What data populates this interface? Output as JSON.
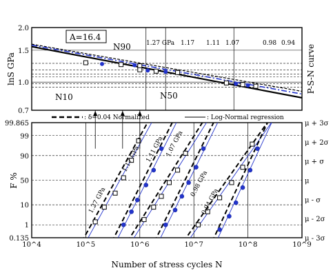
{
  "chart_data": [
    {
      "type": "line",
      "panel": "top",
      "title": "P-S-N curve",
      "ylabel": "lnS GPa",
      "y_scale": "log",
      "ylim": [
        0.7,
        2.0
      ],
      "yticks": [
        "0.7",
        "1.0",
        "1.5",
        "2.0"
      ],
      "annotations": {
        "A": "A=16.4",
        "N90": "N90",
        "N10": "N10",
        "N50": "N50",
        "stress_labels": [
          "1.27 GPa",
          "1.17",
          "1.11",
          "1.07",
          "0.98",
          "0.94"
        ]
      },
      "stress_levels_GPa": [
        1.27,
        1.17,
        1.11,
        1.07,
        0.98,
        0.94
      ],
      "series": [
        {
          "name": "N10",
          "x": [
            10000,
            1000000000
          ],
          "y": [
            1.57,
            0.82
          ]
        },
        {
          "name": "N50",
          "x": [
            10000,
            1000000000
          ],
          "y": [
            1.6,
            0.86
          ]
        },
        {
          "name": "N90",
          "x": [
            10000,
            1000000000
          ],
          "y": [
            1.62,
            0.89
          ]
        },
        {
          "x": [
            100000,
            200000,
            450000,
            800000,
            1000000
          ],
          "y": [
            1.28,
            1.26,
            1.25,
            1.24,
            1.23
          ]
        },
        {
          "x": [
            1000000,
            1400000,
            2000000,
            3000000,
            5000000
          ],
          "y": [
            1.17,
            1.16,
            1.15,
            1.14,
            1.13
          ]
        },
        {
          "x": [
            40000000,
            60000000,
            80000000,
            100000000,
            140000000
          ],
          "y": [
            0.99,
            0.98,
            0.97,
            0.96,
            0.95
          ]
        }
      ]
    },
    {
      "type": "scatter",
      "panel": "bottom",
      "xlabel": "Number of stress cycles N",
      "ylabel": "F %",
      "x_scale": "log",
      "xlim": [
        10000,
        1000000000
      ],
      "xticks": [
        "10^4",
        "10^5",
        "10^6",
        "10^7",
        "10^8",
        "10^9"
      ],
      "yticks": [
        "0.135",
        "1",
        "10",
        "50",
        "90",
        "99",
        "99.865"
      ],
      "yticks_right": [
        "μ - 3σ",
        "μ - 2σ",
        "μ - σ",
        "μ",
        "μ + σ",
        "μ + 2σ",
        "μ + 3σ"
      ],
      "legend": {
        "dashed": ": δ=0.04 Normalized",
        "solid": ": Log-Normal regression"
      },
      "annotations": [
        "1.27 GPa",
        "1.17 GPa",
        "1.11 GPa",
        "1.07 GPa",
        "0.98 GPa",
        "0.94 GPa"
      ],
      "series": [
        {
          "x": [
            150000,
            220000,
            350000,
            500000,
            700000,
            950000
          ],
          "y": [
            1.5,
            8,
            25,
            55,
            85,
            98
          ]
        },
        {
          "x": [
            500000,
            700000,
            900000,
            1300000,
            1800000,
            2500000
          ],
          "y": [
            1,
            5,
            15,
            40,
            70,
            95
          ]
        },
        {
          "x": [
            1200000,
            1800000,
            2500000,
            3500000,
            5000000,
            7000000
          ],
          "y": [
            2,
            8,
            20,
            45,
            70,
            92
          ]
        },
        {
          "x": [
            3000000,
            4500000,
            6000000,
            8000000,
            11000000,
            15000000
          ],
          "y": [
            1,
            6,
            20,
            45,
            75,
            95
          ]
        },
        {
          "x": [
            12000000,
            18000000,
            30000000,
            50000000,
            80000000,
            120000000
          ],
          "y": [
            1,
            5,
            18,
            45,
            75,
            97
          ]
        },
        {
          "x": [
            30000000,
            45000000,
            60000000,
            80000000,
            110000000,
            150000000
          ],
          "y": [
            0.5,
            3,
            12,
            35,
            70,
            95
          ]
        }
      ]
    }
  ]
}
